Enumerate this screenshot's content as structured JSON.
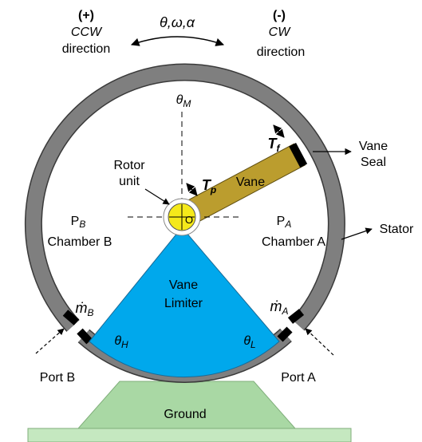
{
  "header": {
    "ccw_sign": "(+)",
    "ccw": "CCW",
    "ccw_dir": "direction",
    "motion": "θ,ω,α",
    "cw_sign": "(-)",
    "cw": "CW",
    "cw_dir": "direction"
  },
  "labels": {
    "theta_m": {
      "base": "θ",
      "sub": "M"
    },
    "t_f": {
      "base": "T",
      "sub": "f"
    },
    "vane_seal": [
      "Vane",
      "Seal"
    ],
    "rotor_unit": [
      "Rotor",
      "unit"
    ],
    "t_p": {
      "base": "T",
      "sub": "p"
    },
    "vane": "Vane",
    "origin": "O",
    "p_b": {
      "base": "P",
      "sub": "B"
    },
    "chamber_b": "Chamber B",
    "p_a": {
      "base": "P",
      "sub": "A"
    },
    "chamber_a": "Chamber A",
    "stator": "Stator",
    "vane_limiter": [
      "Vane",
      "Limiter"
    ],
    "mdot_b": {
      "base": "ṁ",
      "sub": "B"
    },
    "mdot_a": {
      "base": "ṁ",
      "sub": "A"
    },
    "theta_h": {
      "base": "θ",
      "sub": "H"
    },
    "theta_l": {
      "base": "θ",
      "sub": "L"
    },
    "port_b": "Port B",
    "port_a": "Port A",
    "ground": "Ground"
  }
}
